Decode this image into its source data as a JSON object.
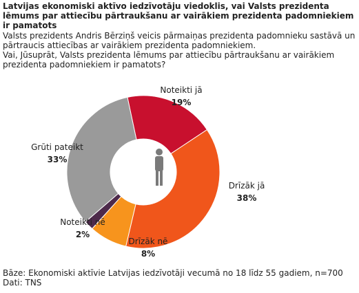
{
  "chart_data": {
    "type": "pie",
    "title": "Latvijas ekonomiski aktīvo iedzīvotāju viedoklis, vai Valsts prezidenta lēmums par attiecību pārtraukšanu ar vairākiem prezidenta padomniekiem ir pamatots",
    "subtitle": [
      "Valsts prezidents Andris Bērziņš veicis pārmaiņas prezidenta padomnieku sastāvā un pārtraucis attiecības ar vairākiem prezidenta padomniekiem.",
      "Vai, Jūsuprāt, Valsts prezidenta lēmums par attiecību pārtraukšanu ar vairākiem prezidenta padomniekiem ir pamatots?"
    ],
    "categories": [
      "Noteikti jā",
      "Drīzāk jā",
      "Drīzāk nē",
      "Noteikti nē",
      "Grūti pateikt"
    ],
    "values": [
      19,
      38,
      8,
      2,
      33
    ],
    "value_labels": [
      "19%",
      "38%",
      "8%",
      "2%",
      "33%"
    ],
    "colors": [
      "#c8102e",
      "#f0561b",
      "#f7941d",
      "#4d2a4b",
      "#9a9a9a"
    ],
    "notes": [
      "Bāze: Ekonomiski aktīvie Latvijas iedzīvotāji vecumā no 18 līdz 55 gadiem, n=700",
      "Dati: TNS"
    ]
  }
}
